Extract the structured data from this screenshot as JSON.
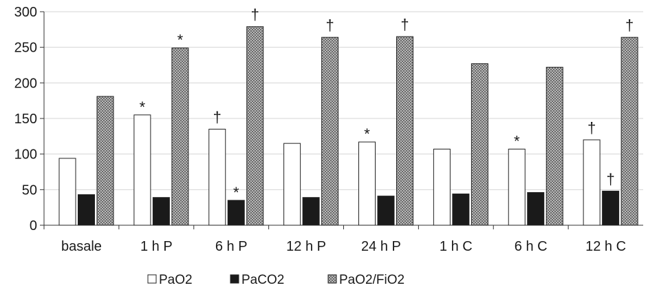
{
  "chart_data": {
    "type": "bar",
    "categories": [
      "basale",
      "1 h P",
      "6 h P",
      "12 h P",
      "24 h P",
      "1 h C",
      "6 h C",
      "12 h C"
    ],
    "series": [
      {
        "name": "PaO2",
        "values": [
          94,
          155,
          135,
          115,
          117,
          107,
          107,
          120
        ],
        "annotations": [
          "",
          "*",
          "†",
          "",
          "*",
          "",
          "*",
          "†"
        ],
        "color": "#ffffff",
        "pattern": "solid-white"
      },
      {
        "name": "PaCO2",
        "values": [
          43,
          39,
          35,
          39,
          41,
          44,
          46,
          48
        ],
        "annotations": [
          "",
          "",
          "*",
          "",
          "",
          "",
          "",
          "†"
        ],
        "color": "#1a1a1a",
        "pattern": "solid-black"
      },
      {
        "name": "PaO2/FiO2",
        "values": [
          181,
          249,
          279,
          264,
          265,
          227,
          222,
          264
        ],
        "annotations": [
          "",
          "*",
          "†",
          "†",
          "†",
          "",
          "",
          "†"
        ],
        "color": "#9a9a9a",
        "pattern": "crosshatch"
      }
    ],
    "yticks": [
      0,
      50,
      100,
      150,
      200,
      250,
      300
    ],
    "ylim": [
      0,
      300
    ],
    "grid": true,
    "legend_position": "bottom",
    "title": "",
    "xlabel": "",
    "ylabel": ""
  }
}
